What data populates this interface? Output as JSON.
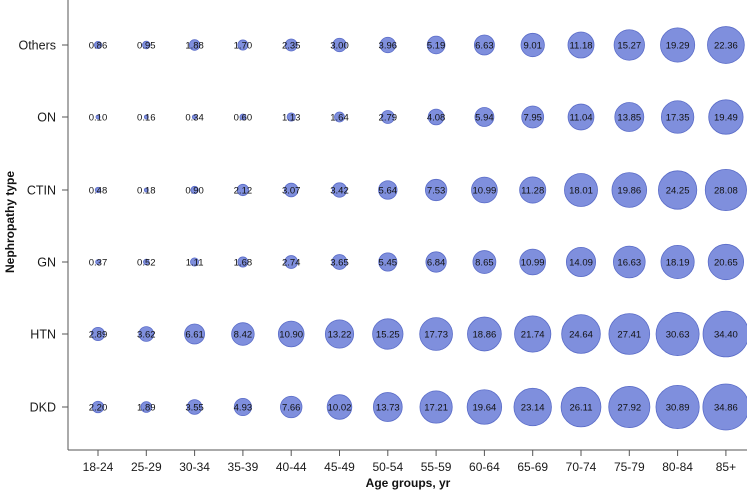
{
  "chart_data": {
    "type": "scatter",
    "xlabel": "Age groups,  yr",
    "ylabel": "Nephropathy type",
    "categories": [
      "18-24",
      "25-29",
      "30-34",
      "35-39",
      "40-44",
      "45-49",
      "50-54",
      "55-59",
      "60-64",
      "65-69",
      "70-74",
      "75-79",
      "80-84",
      "85+"
    ],
    "y_categories": [
      "Others",
      "ON",
      "CTIN",
      "GN",
      "HTN",
      "DKD"
    ],
    "series": [
      {
        "name": "Others",
        "values": [
          "0.86",
          "0.95",
          "1.88",
          "1.70",
          "2.35",
          "3.00",
          "3.96",
          "5.19",
          "6.63",
          "9.01",
          "11.18",
          "15.27",
          "19.29",
          "22.36"
        ]
      },
      {
        "name": "ON",
        "values": [
          "0.10",
          "0.16",
          "0.34",
          "0.60",
          "1.13",
          "1.64",
          "2.79",
          "4.08",
          "5.94",
          "7.95",
          "11.04",
          "13.85",
          "17.35",
          "19.49"
        ]
      },
      {
        "name": "CTIN",
        "values": [
          "0.48",
          "0.18",
          "0.90",
          "2.12",
          "3.07",
          "3.42",
          "5.64",
          "7.53",
          "10.99",
          "11.28",
          "18.01",
          "19.86",
          "24.25",
          "28.08"
        ]
      },
      {
        "name": "GN",
        "values": [
          "0.37",
          "0.52",
          "1.11",
          "1.68",
          "2.74",
          "3.65",
          "5.45",
          "6.84",
          "8.65",
          "10.99",
          "14.09",
          "16.63",
          "18.19",
          "20.65"
        ]
      },
      {
        "name": "HTN",
        "values": [
          "2.89",
          "3.62",
          "6.61",
          "8.42",
          "10.90",
          "13.22",
          "15.25",
          "17.73",
          "18.86",
          "21.74",
          "24.64",
          "27.41",
          "30.63",
          "34.40"
        ]
      },
      {
        "name": "DKD",
        "values": [
          "2.20",
          "1.89",
          "3.55",
          "4.93",
          "7.66",
          "10.02",
          "13.73",
          "17.21",
          "19.64",
          "23.14",
          "26.11",
          "27.92",
          "30.89",
          "34.86"
        ]
      }
    ],
    "bubble_color": "#7f8fdd",
    "bubble_stroke": "#5a6cc8",
    "grid": false
  }
}
